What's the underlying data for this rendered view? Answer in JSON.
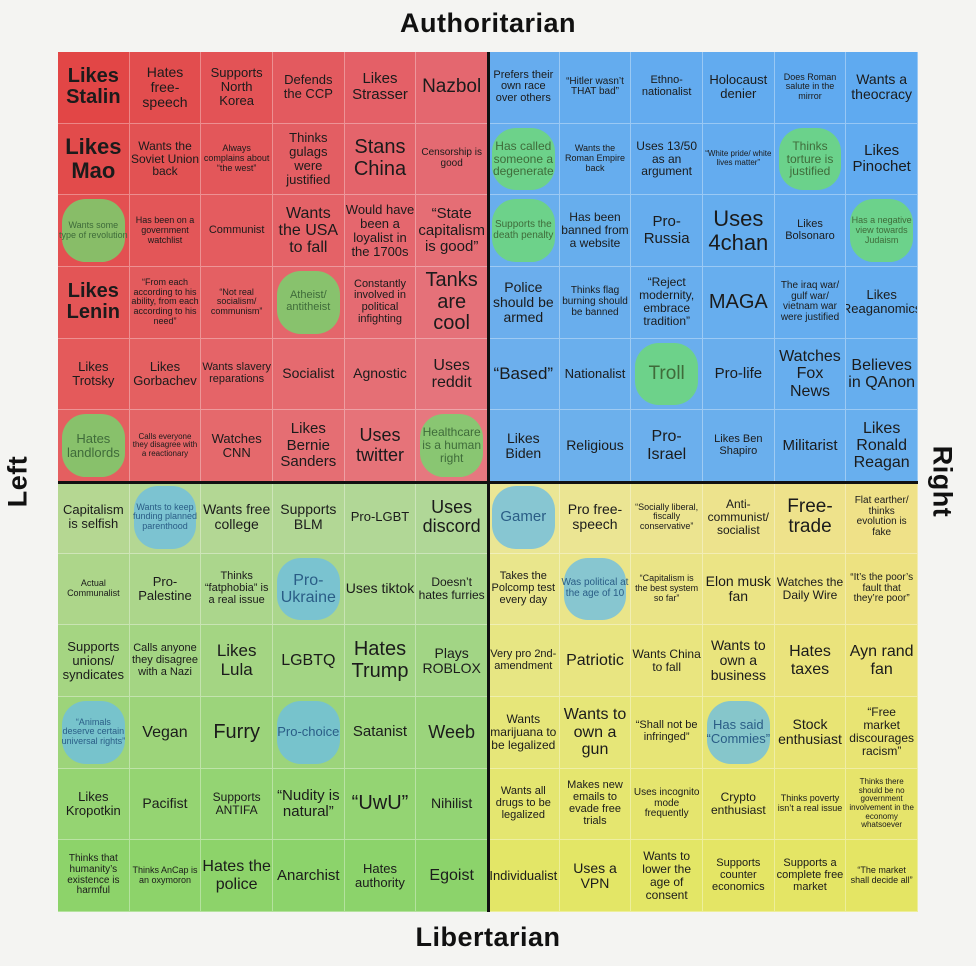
{
  "labels": {
    "top": "Authoritarian",
    "bottom": "Libertarian",
    "left": "Left",
    "right": "Right"
  },
  "highlight_colors": {
    "green": "#6edc6e",
    "blue": "#6ebee1"
  },
  "grid": [
    [
      {
        "t": "Likes Stalin",
        "s": 20,
        "b": 1
      },
      {
        "t": "Hates free-speech",
        "s": 14
      },
      {
        "t": "Supports North Korea",
        "s": 13
      },
      {
        "t": "Defends the CCP",
        "s": 13
      },
      {
        "t": "Likes Strasser",
        "s": 15
      },
      {
        "t": "Nazbol",
        "s": 19
      },
      {
        "t": "Prefers their own race over others",
        "s": 11
      },
      {
        "t": "“Hitler wasn’t THAT bad”",
        "s": 10
      },
      {
        "t": "Ethno-nationalist",
        "s": 11
      },
      {
        "t": "Holocaust denier",
        "s": 13
      },
      {
        "t": "Does Roman salute in the mirror",
        "s": 9
      },
      {
        "t": "Wants a theocracy",
        "s": 14
      }
    ],
    [
      {
        "t": "Likes Mao",
        "s": 22,
        "b": 1
      },
      {
        "t": "Wants the Soviet Union back",
        "s": 12
      },
      {
        "t": "Always complains about “the west”",
        "s": 9
      },
      {
        "t": "Thinks gulags were justified",
        "s": 13
      },
      {
        "t": "Stans China",
        "s": 20
      },
      {
        "t": "Censorship is good",
        "s": 10
      },
      {
        "t": "Has called someone a degenerate",
        "s": 12,
        "hl": "green"
      },
      {
        "t": "Wants the Roman Empire back",
        "s": 9
      },
      {
        "t": "Uses 13/50 as an argument",
        "s": 12
      },
      {
        "t": "“White pride/ white lives matter”",
        "s": 8
      },
      {
        "t": "Thinks torture is justified",
        "s": 12,
        "hl": "green"
      },
      {
        "t": "Likes Pinochet",
        "s": 15
      }
    ],
    [
      {
        "t": "Wants some type of revolution",
        "s": 9,
        "hl": "green"
      },
      {
        "t": "Has been on a government watchlist",
        "s": 9
      },
      {
        "t": "Communist",
        "s": 11
      },
      {
        "t": "Wants the USA to fall",
        "s": 16
      },
      {
        "t": "Would have been a loyalist in the 1700s",
        "s": 13
      },
      {
        "t": "“State capitalism is good”",
        "s": 15
      },
      {
        "t": "Supports the death penalty",
        "s": 10,
        "hl": "green"
      },
      {
        "t": "Has been banned from a website",
        "s": 12
      },
      {
        "t": "Pro-Russia",
        "s": 15
      },
      {
        "t": "Uses 4chan",
        "s": 22
      },
      {
        "t": "Likes Bolsonaro",
        "s": 11
      },
      {
        "t": "Has a negative view towards Judaism",
        "s": 9,
        "hl": "green"
      }
    ],
    [
      {
        "t": "Likes Lenin",
        "s": 20,
        "b": 1
      },
      {
        "t": "“From each according to his ability, from each according to his need”",
        "s": 9
      },
      {
        "t": "“Not real socialism/ communism”",
        "s": 9
      },
      {
        "t": "Atheist/ antitheist",
        "s": 11,
        "hl": "green"
      },
      {
        "t": "Constantly involved in political infighting",
        "s": 11
      },
      {
        "t": "Tanks are cool",
        "s": 20
      },
      {
        "t": "Police should be armed",
        "s": 14
      },
      {
        "t": "Thinks flag burning should be banned",
        "s": 10
      },
      {
        "t": "“Reject modernity, embrace tradition”",
        "s": 12
      },
      {
        "t": "MAGA",
        "s": 20
      },
      {
        "t": "The iraq war/ gulf war/ vietnam war were justified",
        "s": 10
      },
      {
        "t": "Likes Reaganomics",
        "s": 13
      }
    ],
    [
      {
        "t": "Likes Trotsky",
        "s": 13
      },
      {
        "t": "Likes Gorbachev",
        "s": 13
      },
      {
        "t": "Wants slavery reparations",
        "s": 11
      },
      {
        "t": "Socialist",
        "s": 14
      },
      {
        "t": "Agnostic",
        "s": 14
      },
      {
        "t": "Uses reddit",
        "s": 16
      },
      {
        "t": "“Based”",
        "s": 17
      },
      {
        "t": "Nationalist",
        "s": 13
      },
      {
        "t": "Troll",
        "s": 19,
        "hl": "green"
      },
      {
        "t": "Pro-life",
        "s": 15
      },
      {
        "t": "Watches Fox News",
        "s": 16
      },
      {
        "t": "Believes in QAnon",
        "s": 16
      }
    ],
    [
      {
        "t": "Hates landlords",
        "s": 13,
        "hl": "green"
      },
      {
        "t": "Calls everyone they disagree with a reactionary",
        "s": 8
      },
      {
        "t": "Watches CNN",
        "s": 13
      },
      {
        "t": "Likes Bernie Sanders",
        "s": 15
      },
      {
        "t": "Uses twitter",
        "s": 18
      },
      {
        "t": "Healthcare is a human right",
        "s": 12,
        "hl": "green"
      },
      {
        "t": "Likes Biden",
        "s": 14
      },
      {
        "t": "Religious",
        "s": 14
      },
      {
        "t": "Pro-Israel",
        "s": 16
      },
      {
        "t": "Likes Ben Shapiro",
        "s": 11
      },
      {
        "t": "Militarist",
        "s": 15
      },
      {
        "t": "Likes Ronald Reagan",
        "s": 16
      }
    ],
    [
      {
        "t": "Capitalism is selfish",
        "s": 13
      },
      {
        "t": "Wants to keep funding planned parenthood",
        "s": 9,
        "hl": "blue"
      },
      {
        "t": "Wants free college",
        "s": 14
      },
      {
        "t": "Supports BLM",
        "s": 14
      },
      {
        "t": "Pro-LGBT",
        "s": 13
      },
      {
        "t": "Uses discord",
        "s": 18
      },
      {
        "t": "Gamer",
        "s": 15,
        "hl": "blue"
      },
      {
        "t": "Pro free-speech",
        "s": 14
      },
      {
        "t": "“Socially liberal, fiscally conservative”",
        "s": 9
      },
      {
        "t": "Anti-communist/ socialist",
        "s": 12
      },
      {
        "t": "Free-trade",
        "s": 19
      },
      {
        "t": "Flat earther/ thinks evolution is fake",
        "s": 10
      }
    ],
    [
      {
        "t": "Actual Communalist",
        "s": 9
      },
      {
        "t": "Pro-Palestine",
        "s": 13
      },
      {
        "t": "Thinks “fatphobia” is a real issue",
        "s": 11
      },
      {
        "t": "Pro-Ukraine",
        "s": 16,
        "hl": "blue"
      },
      {
        "t": "Uses tiktok",
        "s": 14
      },
      {
        "t": "Doesn’t hates furries",
        "s": 12
      },
      {
        "t": "Takes the Polcomp test every day",
        "s": 11
      },
      {
        "t": "Was political at the age of 10",
        "s": 10,
        "hl": "blue"
      },
      {
        "t": "“Capitalism is the best system so far”",
        "s": 9
      },
      {
        "t": "Elon musk fan",
        "s": 14
      },
      {
        "t": "Watches the Daily Wire",
        "s": 12
      },
      {
        "t": "“It’s the poor’s fault that they’re poor”",
        "s": 10
      }
    ],
    [
      {
        "t": "Supports unions/ syndicates",
        "s": 13
      },
      {
        "t": "Calls anyone they disagree with a Nazi",
        "s": 11
      },
      {
        "t": "Likes Lula",
        "s": 17
      },
      {
        "t": "LGBTQ",
        "s": 16
      },
      {
        "t": "Hates Trump",
        "s": 20
      },
      {
        "t": "Plays ROBLOX",
        "s": 14
      },
      {
        "t": "Very pro 2nd-amendment",
        "s": 11
      },
      {
        "t": "Patriotic",
        "s": 16
      },
      {
        "t": "Wants China to fall",
        "s": 12
      },
      {
        "t": "Wants to own a business",
        "s": 14
      },
      {
        "t": "Hates taxes",
        "s": 16
      },
      {
        "t": "Ayn rand fan",
        "s": 16
      }
    ],
    [
      {
        "t": "“Animals deserve certain universal rights”",
        "s": 9,
        "hl": "blue"
      },
      {
        "t": "Vegan",
        "s": 16
      },
      {
        "t": "Furry",
        "s": 20
      },
      {
        "t": "Pro-choice",
        "s": 13,
        "hl": "blue"
      },
      {
        "t": "Satanist",
        "s": 15
      },
      {
        "t": "Weeb",
        "s": 18
      },
      {
        "t": "Wants marijuana to be legalized",
        "s": 12
      },
      {
        "t": "Wants to own a gun",
        "s": 16
      },
      {
        "t": "“Shall not be infringed”",
        "s": 11
      },
      {
        "t": "Has said “Commies”",
        "s": 13,
        "hl": "blue"
      },
      {
        "t": "Stock enthusiast",
        "s": 14
      },
      {
        "t": "“Free market discourages racism”",
        "s": 12
      }
    ],
    [
      {
        "t": "Likes Kropotkin",
        "s": 13
      },
      {
        "t": "Pacifist",
        "s": 14
      },
      {
        "t": "Supports ANTIFA",
        "s": 12
      },
      {
        "t": "“Nudity is natural”",
        "s": 15
      },
      {
        "t": "“UwU”",
        "s": 20
      },
      {
        "t": "Nihilist",
        "s": 14
      },
      {
        "t": "Wants all drugs to be legalized",
        "s": 11
      },
      {
        "t": "Makes new emails to evade free trials",
        "s": 11
      },
      {
        "t": "Uses incognito mode frequently",
        "s": 10
      },
      {
        "t": "Crypto enthusiast",
        "s": 12
      },
      {
        "t": "Thinks poverty isn’t a real issue",
        "s": 9
      },
      {
        "t": "Thinks there should be no government involvement in the economy whatsoever",
        "s": 8
      }
    ],
    [
      {
        "t": "Thinks that humanity’s existence is harmful",
        "s": 10
      },
      {
        "t": "Thinks AnCap is an oxymoron",
        "s": 9
      },
      {
        "t": "Hates the police",
        "s": 16
      },
      {
        "t": "Anarchist",
        "s": 15
      },
      {
        "t": "Hates authority",
        "s": 13
      },
      {
        "t": "Egoist",
        "s": 16
      },
      {
        "t": "Individualist",
        "s": 13
      },
      {
        "t": "Uses a VPN",
        "s": 14
      },
      {
        "t": "Wants to lower the age of consent",
        "s": 12
      },
      {
        "t": "Supports counter economics",
        "s": 11
      },
      {
        "t": "Supports a complete free market",
        "s": 11
      },
      {
        "t": "“The market shall decide all”",
        "s": 9
      }
    ]
  ]
}
